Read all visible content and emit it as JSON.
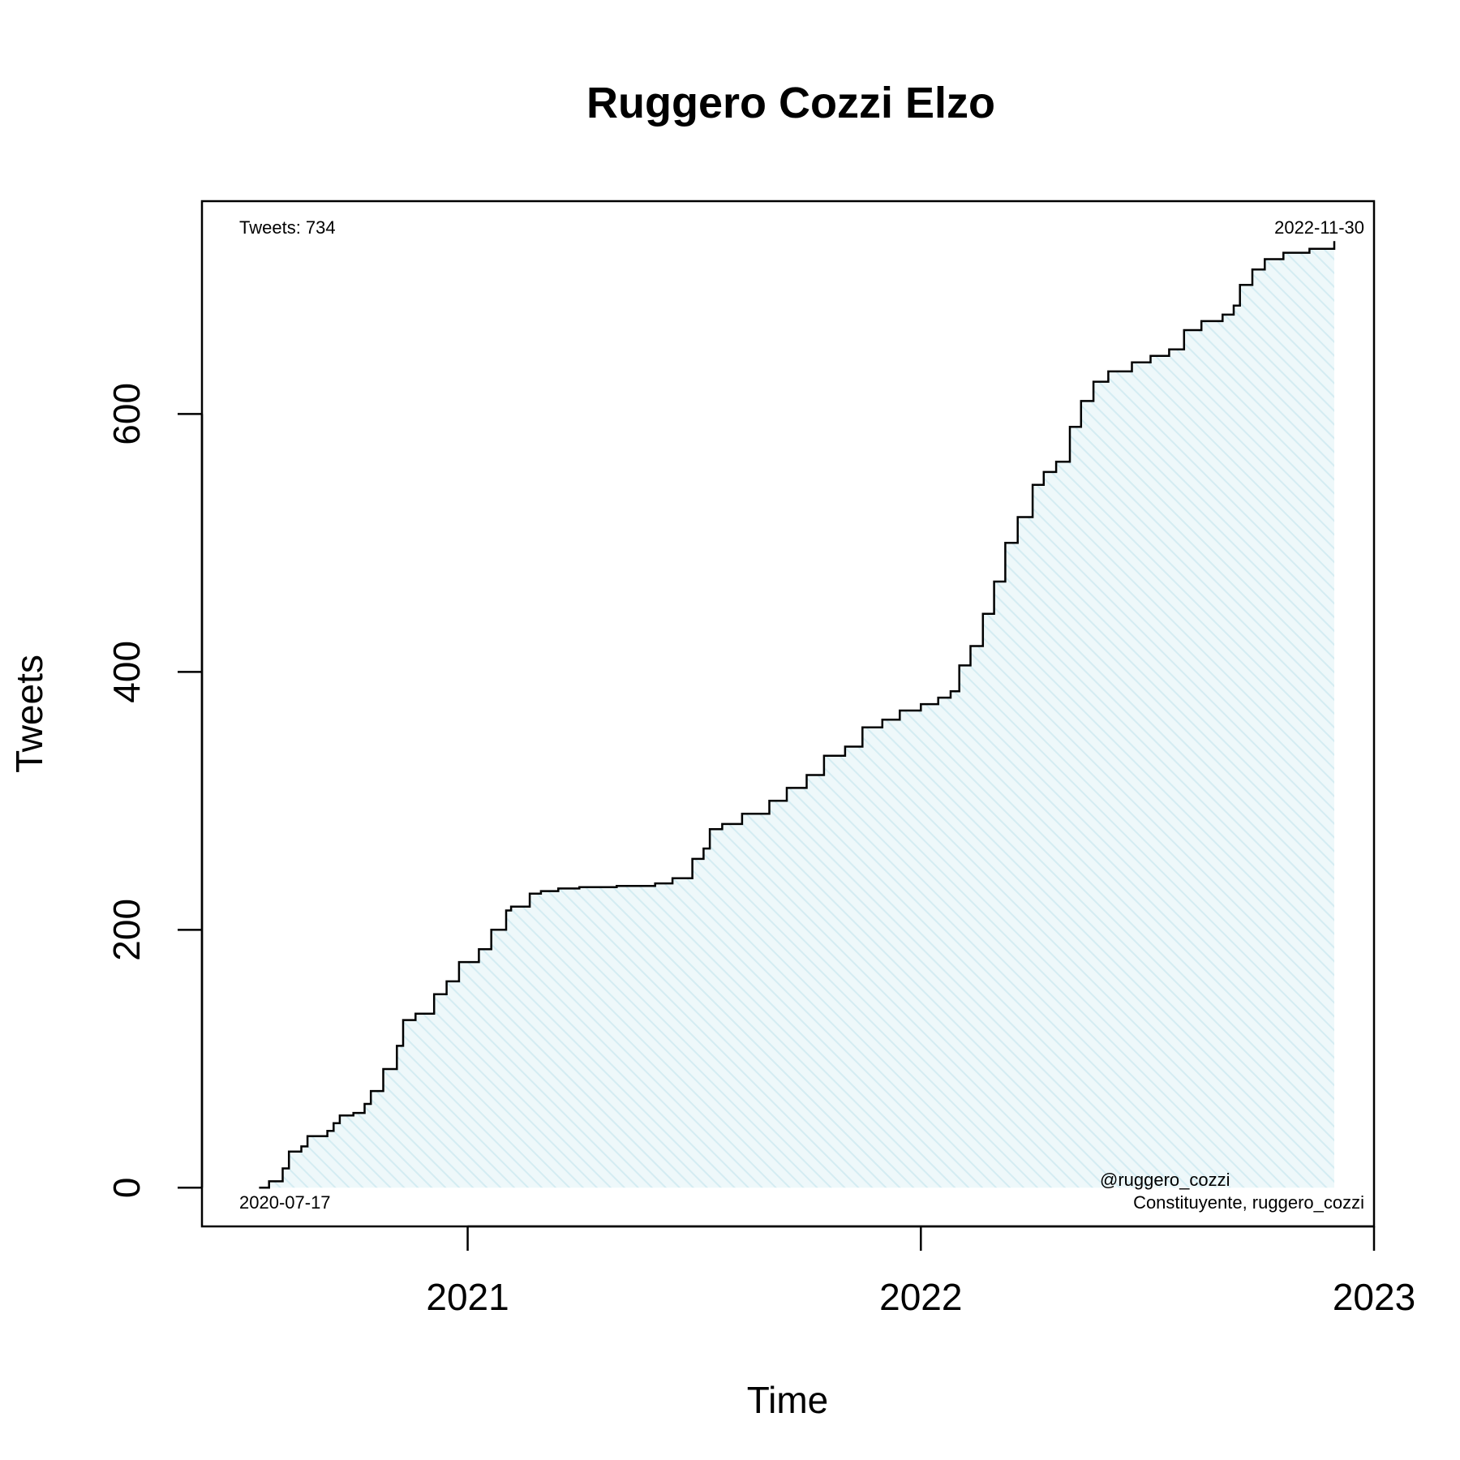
{
  "chart_data": {
    "type": "area",
    "title": "Ruggero Cozzi Elzo",
    "xlabel": "Time",
    "ylabel": "Tweets",
    "x_ticks": [
      "2021",
      "2022",
      "2023"
    ],
    "y_ticks": [
      "0",
      "200",
      "400",
      "600"
    ],
    "xlim": [
      "2020-06-01",
      "2023-01-01"
    ],
    "ylim": [
      -30,
      765
    ],
    "grid": false,
    "fill_color": "#e3f3f7",
    "line_color": "#000000",
    "annotations": {
      "top_left": "Tweets: 734",
      "top_right": "2022-11-30",
      "bottom_left": "2020-07-17",
      "bottom_right_line1": "@ruggero_cozzi",
      "bottom_right_line2": "Constituyente, ruggero_cozzi"
    },
    "series": [
      {
        "x": [
          "2020-07-17",
          "2020-07-25",
          "2020-08-05",
          "2020-08-10",
          "2020-08-20",
          "2020-08-25",
          "2020-09-10",
          "2020-09-15",
          "2020-09-20",
          "2020-10-01",
          "2020-10-10",
          "2020-10-15",
          "2020-10-25",
          "2020-11-05",
          "2020-11-10",
          "2020-11-20",
          "2020-12-05",
          "2020-12-15",
          "2020-12-25",
          "2021-01-10",
          "2021-01-20",
          "2021-02-01",
          "2021-02-05",
          "2021-02-20",
          "2021-03-01",
          "2021-03-15",
          "2021-04-01",
          "2021-05-01",
          "2021-06-01",
          "2021-06-15",
          "2021-07-01",
          "2021-07-10",
          "2021-07-15",
          "2021-07-25",
          "2021-08-10",
          "2021-09-01",
          "2021-09-15",
          "2021-10-01",
          "2021-10-15",
          "2021-11-01",
          "2021-11-15",
          "2021-12-01",
          "2021-12-15",
          "2022-01-01",
          "2022-01-15",
          "2022-01-25",
          "2022-02-01",
          "2022-02-10",
          "2022-02-20",
          "2022-03-01",
          "2022-03-10",
          "2022-03-20",
          "2022-04-01",
          "2022-04-10",
          "2022-04-20",
          "2022-05-01",
          "2022-05-10",
          "2022-05-20",
          "2022-06-01",
          "2022-06-20",
          "2022-07-05",
          "2022-07-20",
          "2022-08-01",
          "2022-08-15",
          "2022-09-01",
          "2022-09-10",
          "2022-09-15",
          "2022-09-25",
          "2022-10-05",
          "2022-10-20",
          "2022-11-10",
          "2022-11-30"
        ],
        "y": [
          0,
          5,
          15,
          28,
          32,
          40,
          44,
          50,
          56,
          58,
          65,
          75,
          92,
          110,
          130,
          135,
          150,
          160,
          175,
          185,
          200,
          215,
          218,
          228,
          230,
          232,
          233,
          234,
          236,
          240,
          255,
          263,
          278,
          282,
          290,
          300,
          310,
          320,
          335,
          342,
          357,
          363,
          370,
          375,
          380,
          385,
          405,
          420,
          445,
          470,
          500,
          520,
          545,
          555,
          563,
          590,
          610,
          625,
          633,
          640,
          645,
          650,
          665,
          672,
          677,
          684,
          700,
          712,
          720,
          725,
          728,
          734
        ]
      }
    ]
  }
}
